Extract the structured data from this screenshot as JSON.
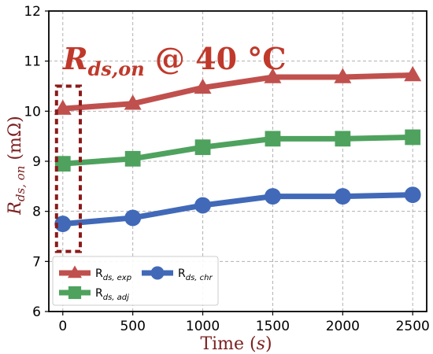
{
  "chart_data": {
    "type": "line",
    "title": "",
    "x": [
      0,
      500,
      1000,
      1500,
      2000,
      2500
    ],
    "xlim": [
      -100,
      2600
    ],
    "ylim": [
      6,
      12
    ],
    "xticks": [
      0,
      500,
      1000,
      1500,
      2000,
      2500
    ],
    "yticks": [
      6,
      7,
      8,
      9,
      10,
      11,
      12
    ],
    "xlabel": {
      "main": "Time (",
      "italic": "s",
      "tail": ")"
    },
    "ylabel": {
      "main": "R",
      "sub": "ds, on",
      "unit": " (mΩ)"
    },
    "grid": true,
    "legend_position": "bottom-left",
    "annotation": {
      "main": "R",
      "sub": "ds,on",
      "rest": " @ 40 °C"
    },
    "highlight_box": {
      "x_range": [
        -45,
        125
      ],
      "y_range": [
        7.2,
        10.5
      ],
      "color": "#8b1a1a"
    },
    "series": [
      {
        "key": "exp",
        "legend_main": "R",
        "legend_sub": "ds, exp",
        "marker": "triangle",
        "color": "#c0504d",
        "values": [
          10.05,
          10.15,
          10.47,
          10.68,
          10.68,
          10.72
        ]
      },
      {
        "key": "adj",
        "legend_main": "R",
        "legend_sub": "ds, adj",
        "marker": "square",
        "color": "#4ea25e",
        "values": [
          8.95,
          9.05,
          9.28,
          9.45,
          9.45,
          9.48
        ]
      },
      {
        "key": "chr",
        "legend_main": "R",
        "legend_sub": "ds, chr",
        "marker": "circle",
        "color": "#4169b8",
        "values": [
          7.75,
          7.87,
          8.12,
          8.3,
          8.3,
          8.33
        ]
      }
    ]
  }
}
